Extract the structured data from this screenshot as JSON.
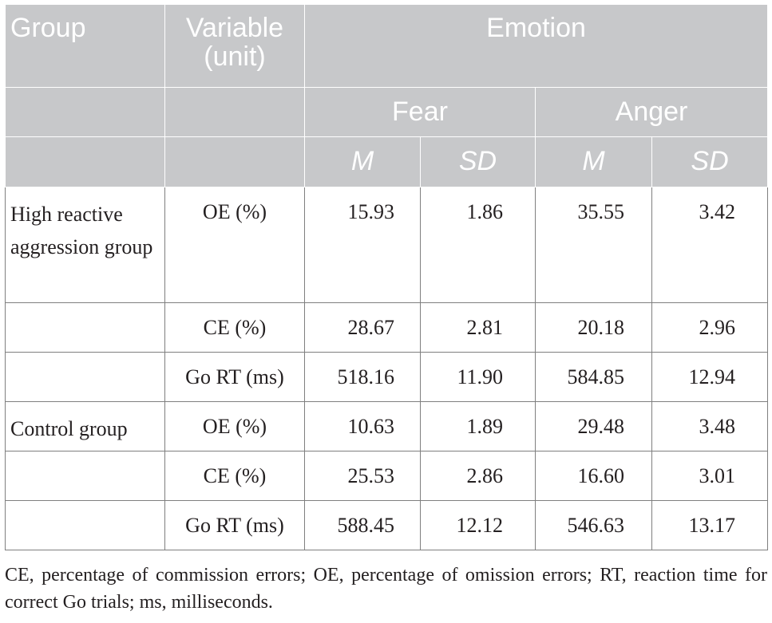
{
  "header": {
    "group": "Group",
    "variable_line1": "Variable",
    "variable_line2": "(unit)",
    "emotion": "Emotion",
    "fear": "Fear",
    "anger": "Anger",
    "m": "M",
    "sd": "SD"
  },
  "rows": [
    {
      "group": "High reactive aggression group",
      "variable": "OE (%)",
      "fear_m": "15.93",
      "fear_sd": "1.86",
      "anger_m": "35.55",
      "anger_sd": "3.42"
    },
    {
      "group": "",
      "variable": "CE (%)",
      "fear_m": "28.67",
      "fear_sd": "2.81",
      "anger_m": "20.18",
      "anger_sd": "2.96"
    },
    {
      "group": "",
      "variable": "Go RT (ms)",
      "fear_m": "518.16",
      "fear_sd": "11.90",
      "anger_m": "584.85",
      "anger_sd": "12.94"
    },
    {
      "group": "Control group",
      "variable": "OE (%)",
      "fear_m": "10.63",
      "fear_sd": "1.89",
      "anger_m": "29.48",
      "anger_sd": "3.48"
    },
    {
      "group": "",
      "variable": "CE (%)",
      "fear_m": "25.53",
      "fear_sd": "2.86",
      "anger_m": "16.60",
      "anger_sd": "3.01"
    },
    {
      "group": "",
      "variable": "Go RT (ms)",
      "fear_m": "588.45",
      "fear_sd": "12.12",
      "anger_m": "546.63",
      "anger_sd": "13.17"
    }
  ],
  "footnote": "CE, percentage of commission errors; OE, percentage of omission errors; RT, reaction time for correct Go trials; ms, milliseconds."
}
